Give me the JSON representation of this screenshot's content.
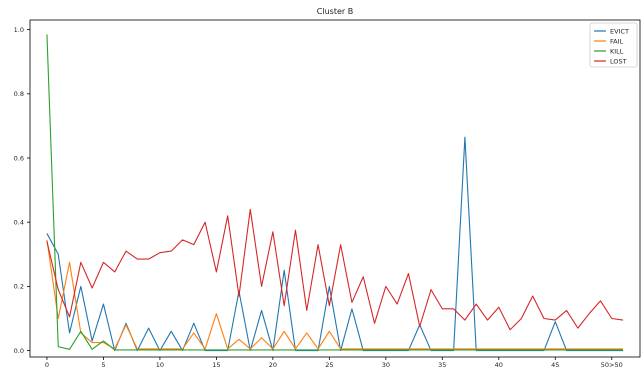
{
  "chart_data": {
    "type": "line",
    "title": "Cluster B",
    "xlabel": "",
    "ylabel": "",
    "xlim": [
      -1.5,
      52.5
    ],
    "ylim": [
      -0.02,
      1.03
    ],
    "x_ticks": [
      0,
      5,
      10,
      15,
      20,
      25,
      30,
      35,
      40,
      45,
      50
    ],
    "x_tick_labels": [
      "0",
      "5",
      "10",
      "15",
      "20",
      "25",
      "30",
      "35",
      "40",
      "45",
      "50>50"
    ],
    "y_ticks": [
      0.0,
      0.2,
      0.4,
      0.6,
      0.8,
      1.0
    ],
    "y_tick_labels": [
      "0.0",
      "0.2",
      "0.4",
      "0.6",
      "0.8",
      "1.0"
    ],
    "grid": false,
    "legend_position": "top-right",
    "series": [
      {
        "name": "EVICT",
        "color": "#1f77b4",
        "x": [
          0,
          1,
          2,
          3,
          4,
          5,
          6,
          7,
          8,
          9,
          10,
          11,
          12,
          13,
          14,
          15,
          16,
          17,
          18,
          19,
          20,
          21,
          22,
          23,
          24,
          25,
          26,
          27,
          28,
          29,
          30,
          31,
          32,
          33,
          34,
          35,
          36,
          37,
          38,
          39,
          40,
          41,
          42,
          43,
          44,
          45,
          46,
          47,
          48,
          49,
          50,
          51
        ],
        "values": [
          0.365,
          0.3,
          0.055,
          0.2,
          0.03,
          0.145,
          0.0,
          0.085,
          0.0,
          0.07,
          0.0,
          0.06,
          0.0,
          0.085,
          0.0,
          0.0,
          0.0,
          0.185,
          0.0,
          0.125,
          0.0,
          0.25,
          0.0,
          0.0,
          0.0,
          0.2,
          0.0,
          0.13,
          0.0,
          0.0,
          0.0,
          0.0,
          0.0,
          0.08,
          0.0,
          0.0,
          0.0,
          0.665,
          0.0,
          0.0,
          0.0,
          0.0,
          0.0,
          0.0,
          0.0,
          0.09,
          0.0,
          0.0,
          0.0,
          0.0,
          0.0,
          0.0
        ]
      },
      {
        "name": "FAIL",
        "color": "#ff7f0e",
        "x": [
          0,
          1,
          2,
          3,
          4,
          5,
          6,
          7,
          8,
          9,
          10,
          11,
          12,
          13,
          14,
          15,
          16,
          17,
          18,
          19,
          20,
          21,
          22,
          23,
          24,
          25,
          26,
          27,
          28,
          29,
          30,
          31,
          32,
          33,
          34,
          35,
          36,
          37,
          38,
          39,
          40,
          41,
          42,
          43,
          44,
          45,
          46,
          47,
          48,
          49,
          50,
          51
        ],
        "values": [
          0.345,
          0.1,
          0.275,
          0.055,
          0.025,
          0.025,
          0.005,
          0.08,
          0.005,
          0.005,
          0.005,
          0.005,
          0.005,
          0.055,
          0.005,
          0.115,
          0.005,
          0.035,
          0.005,
          0.04,
          0.005,
          0.06,
          0.005,
          0.055,
          0.005,
          0.06,
          0.005,
          0.005,
          0.005,
          0.005,
          0.005,
          0.005,
          0.005,
          0.005,
          0.005,
          0.005,
          0.005,
          0.005,
          0.005,
          0.005,
          0.005,
          0.005,
          0.005,
          0.005,
          0.005,
          0.005,
          0.005,
          0.005,
          0.005,
          0.005,
          0.005,
          0.005
        ]
      },
      {
        "name": "KILL",
        "color": "#2ca02c",
        "x": [
          0,
          1,
          2,
          3,
          4,
          5,
          6,
          7,
          8,
          9,
          10,
          11,
          12,
          13,
          14,
          15,
          16,
          17,
          18,
          19,
          20,
          21,
          22,
          23,
          24,
          25,
          26,
          27,
          28,
          29,
          30,
          31,
          32,
          33,
          34,
          35,
          36,
          37,
          38,
          39,
          40,
          41,
          42,
          43,
          44,
          45,
          46,
          47,
          48,
          49,
          50,
          51
        ],
        "values": [
          0.985,
          0.012,
          0.004,
          0.06,
          0.004,
          0.03,
          0.002,
          0.002,
          0.002,
          0.002,
          0.002,
          0.002,
          0.002,
          0.002,
          0.002,
          0.002,
          0.002,
          0.002,
          0.002,
          0.002,
          0.002,
          0.002,
          0.002,
          0.002,
          0.002,
          0.002,
          0.002,
          0.002,
          0.002,
          0.002,
          0.002,
          0.002,
          0.002,
          0.002,
          0.002,
          0.002,
          0.002,
          0.002,
          0.002,
          0.002,
          0.002,
          0.002,
          0.002,
          0.002,
          0.002,
          0.002,
          0.002,
          0.002,
          0.002,
          0.002,
          0.002,
          0.002
        ]
      },
      {
        "name": "LOST",
        "color": "#d62728",
        "x": [
          0,
          1,
          2,
          3,
          4,
          5,
          6,
          7,
          8,
          9,
          10,
          11,
          12,
          13,
          14,
          15,
          16,
          17,
          18,
          19,
          20,
          21,
          22,
          23,
          24,
          25,
          26,
          27,
          28,
          29,
          30,
          31,
          32,
          33,
          34,
          35,
          36,
          37,
          38,
          39,
          40,
          41,
          42,
          43,
          44,
          45,
          46,
          47,
          48,
          49,
          50,
          51
        ],
        "values": [
          0.34,
          0.19,
          0.105,
          0.275,
          0.195,
          0.275,
          0.245,
          0.31,
          0.285,
          0.285,
          0.305,
          0.31,
          0.345,
          0.33,
          0.4,
          0.245,
          0.42,
          0.17,
          0.44,
          0.2,
          0.37,
          0.14,
          0.375,
          0.125,
          0.33,
          0.14,
          0.33,
          0.15,
          0.23,
          0.085,
          0.2,
          0.145,
          0.24,
          0.075,
          0.19,
          0.13,
          0.13,
          0.095,
          0.145,
          0.095,
          0.135,
          0.065,
          0.1,
          0.17,
          0.1,
          0.095,
          0.125,
          0.07,
          0.115,
          0.155,
          0.1,
          0.095
        ]
      }
    ]
  }
}
